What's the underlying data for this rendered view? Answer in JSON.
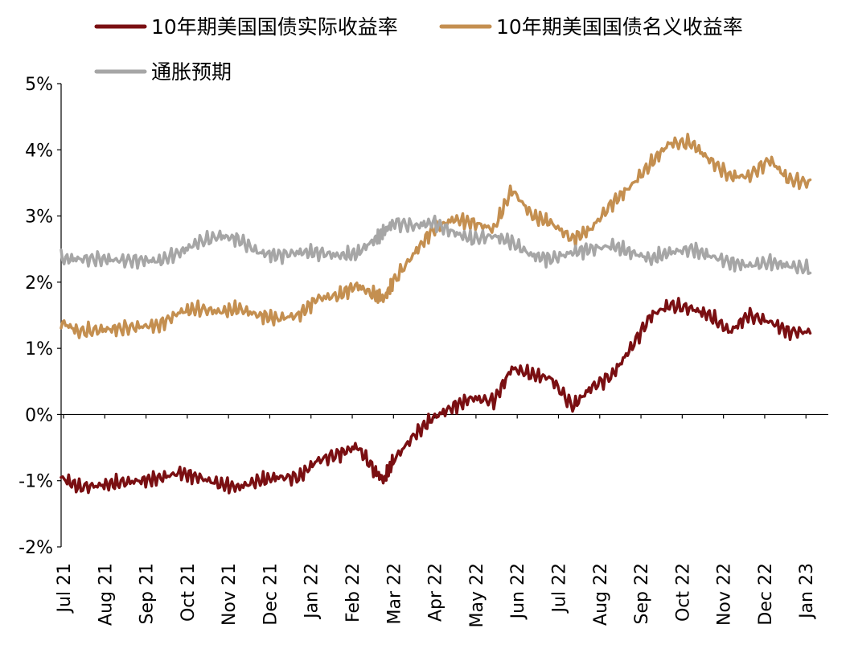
{
  "chart_data": {
    "type": "line",
    "title": "",
    "xlabel": "",
    "ylabel": "",
    "ylim": [
      -0.02,
      0.05
    ],
    "y_ticks": [
      {
        "value": 0.05,
        "label": "5%"
      },
      {
        "value": 0.04,
        "label": "4%"
      },
      {
        "value": 0.03,
        "label": "3%"
      },
      {
        "value": 0.02,
        "label": "2%"
      },
      {
        "value": 0.01,
        "label": "1%"
      },
      {
        "value": 0.0,
        "label": "0%"
      },
      {
        "value": -0.01,
        "label": "-1%"
      },
      {
        "value": -0.02,
        "label": "-2%"
      }
    ],
    "x_tick_labels": [
      "Jul 21",
      "Aug 21",
      "Sep 21",
      "Oct 21",
      "Nov 21",
      "Dec 21",
      "Jan 22",
      "Feb 22",
      "Mar 22",
      "Apr 22",
      "May 22",
      "Jun 22",
      "Jul 22",
      "Aug 22",
      "Sep 22",
      "Oct 22",
      "Nov 22",
      "Dec 22",
      "Jan 23"
    ],
    "grid": false,
    "legend_position": "top",
    "series": [
      {
        "name": "10年期美国国债实际收益率",
        "color": "#7a0f12",
        "values": [
          [
            "2021-07-01",
            -0.0095
          ],
          [
            "2021-07-15",
            -0.011
          ],
          [
            "2021-08-01",
            -0.0107
          ],
          [
            "2021-08-15",
            -0.0103
          ],
          [
            "2021-09-01",
            -0.01
          ],
          [
            "2021-09-15",
            -0.0096
          ],
          [
            "2021-10-01",
            -0.0088
          ],
          [
            "2021-10-15",
            -0.0095
          ],
          [
            "2021-11-01",
            -0.0105
          ],
          [
            "2021-11-15",
            -0.011
          ],
          [
            "2021-12-01",
            -0.01
          ],
          [
            "2021-12-15",
            -0.0095
          ],
          [
            "2022-01-01",
            -0.0095
          ],
          [
            "2022-01-15",
            -0.007
          ],
          [
            "2022-02-01",
            -0.006
          ],
          [
            "2022-02-15",
            -0.0048
          ],
          [
            "2022-03-01",
            -0.0085
          ],
          [
            "2022-03-08",
            -0.01
          ],
          [
            "2022-03-15",
            -0.007
          ],
          [
            "2022-04-01",
            -0.003
          ],
          [
            "2022-04-15",
            -0.0005
          ],
          [
            "2022-05-01",
            0.0012
          ],
          [
            "2022-05-15",
            0.0025
          ],
          [
            "2022-06-01",
            0.002
          ],
          [
            "2022-06-15",
            0.007
          ],
          [
            "2022-07-01",
            0.006
          ],
          [
            "2022-07-15",
            0.0055
          ],
          [
            "2022-08-01",
            0.0012
          ],
          [
            "2022-08-15",
            0.004
          ],
          [
            "2022-09-01",
            0.006
          ],
          [
            "2022-09-15",
            0.01
          ],
          [
            "2022-10-01",
            0.015
          ],
          [
            "2022-10-15",
            0.0165
          ],
          [
            "2022-11-01",
            0.016
          ],
          [
            "2022-11-15",
            0.015
          ],
          [
            "2022-12-01",
            0.0125
          ],
          [
            "2022-12-15",
            0.015
          ],
          [
            "2023-01-01",
            0.014
          ],
          [
            "2023-01-15",
            0.0125
          ],
          [
            "2023-02-01",
            0.0125
          ]
        ]
      },
      {
        "name": "10年期美国国债名义收益率",
        "color": "#c48f50",
        "values": [
          [
            "2021-07-01",
            0.014
          ],
          [
            "2021-07-15",
            0.0125
          ],
          [
            "2021-08-01",
            0.0128
          ],
          [
            "2021-08-15",
            0.013
          ],
          [
            "2021-09-01",
            0.0133
          ],
          [
            "2021-09-15",
            0.0135
          ],
          [
            "2021-10-01",
            0.0155
          ],
          [
            "2021-10-15",
            0.016
          ],
          [
            "2021-11-01",
            0.0155
          ],
          [
            "2021-11-15",
            0.016
          ],
          [
            "2021-12-01",
            0.015
          ],
          [
            "2021-12-15",
            0.0145
          ],
          [
            "2022-01-01",
            0.015
          ],
          [
            "2022-01-15",
            0.0175
          ],
          [
            "2022-02-01",
            0.018
          ],
          [
            "2022-02-15",
            0.0195
          ],
          [
            "2022-03-01",
            0.018
          ],
          [
            "2022-03-08",
            0.0175
          ],
          [
            "2022-03-15",
            0.02
          ],
          [
            "2022-04-01",
            0.0245
          ],
          [
            "2022-04-15",
            0.028
          ],
          [
            "2022-05-01",
            0.0295
          ],
          [
            "2022-05-15",
            0.029
          ],
          [
            "2022-06-01",
            0.028
          ],
          [
            "2022-06-15",
            0.034
          ],
          [
            "2022-07-01",
            0.03
          ],
          [
            "2022-07-15",
            0.029
          ],
          [
            "2022-08-01",
            0.0265
          ],
          [
            "2022-08-15",
            0.028
          ],
          [
            "2022-09-01",
            0.032
          ],
          [
            "2022-09-15",
            0.0345
          ],
          [
            "2022-10-01",
            0.038
          ],
          [
            "2022-10-15",
            0.041
          ],
          [
            "2022-11-01",
            0.041
          ],
          [
            "2022-11-15",
            0.0385
          ],
          [
            "2022-12-01",
            0.036
          ],
          [
            "2022-12-15",
            0.036
          ],
          [
            "2023-01-01",
            0.0385
          ],
          [
            "2023-01-15",
            0.0355
          ],
          [
            "2023-02-01",
            0.035
          ]
        ]
      },
      {
        "name": "通胀预期",
        "color": "#a6a6a6",
        "values": [
          [
            "2021-07-01",
            0.0235
          ],
          [
            "2021-07-15",
            0.0235
          ],
          [
            "2021-08-01",
            0.0235
          ],
          [
            "2021-08-15",
            0.0233
          ],
          [
            "2021-09-01",
            0.0233
          ],
          [
            "2021-09-15",
            0.0232
          ],
          [
            "2021-10-01",
            0.0245
          ],
          [
            "2021-10-15",
            0.026
          ],
          [
            "2021-11-01",
            0.027
          ],
          [
            "2021-11-15",
            0.0265
          ],
          [
            "2021-12-01",
            0.0245
          ],
          [
            "2021-12-15",
            0.024
          ],
          [
            "2022-01-01",
            0.0245
          ],
          [
            "2022-01-15",
            0.0245
          ],
          [
            "2022-02-01",
            0.024
          ],
          [
            "2022-02-15",
            0.0243
          ],
          [
            "2022-03-01",
            0.0265
          ],
          [
            "2022-03-08",
            0.0275
          ],
          [
            "2022-03-15",
            0.029
          ],
          [
            "2022-04-01",
            0.0285
          ],
          [
            "2022-04-15",
            0.029
          ],
          [
            "2022-05-01",
            0.0275
          ],
          [
            "2022-05-15",
            0.0265
          ],
          [
            "2022-06-01",
            0.027
          ],
          [
            "2022-06-15",
            0.026
          ],
          [
            "2022-07-01",
            0.024
          ],
          [
            "2022-07-15",
            0.0235
          ],
          [
            "2022-08-01",
            0.0245
          ],
          [
            "2022-08-15",
            0.025
          ],
          [
            "2022-09-01",
            0.0255
          ],
          [
            "2022-09-15",
            0.0245
          ],
          [
            "2022-10-01",
            0.0235
          ],
          [
            "2022-10-15",
            0.0245
          ],
          [
            "2022-11-01",
            0.025
          ],
          [
            "2022-11-15",
            0.024
          ],
          [
            "2022-12-01",
            0.023
          ],
          [
            "2022-12-15",
            0.0225
          ],
          [
            "2023-01-01",
            0.023
          ],
          [
            "2023-01-15",
            0.0225
          ],
          [
            "2023-02-01",
            0.022
          ]
        ]
      }
    ]
  }
}
